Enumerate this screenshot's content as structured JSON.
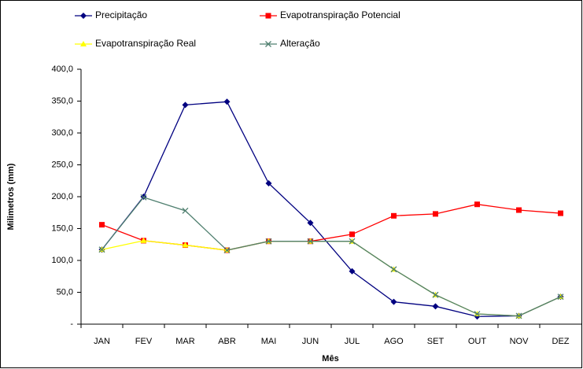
{
  "chart_data": {
    "type": "line",
    "xlabel": "Mês",
    "ylabel": "Milimetros (mm)",
    "categories": [
      "JAN",
      "FEV",
      "MAR",
      "ABR",
      "MAI",
      "JUN",
      "JUL",
      "AGO",
      "SET",
      "OUT",
      "NOV",
      "DEZ"
    ],
    "series": [
      {
        "name": "Precipitação",
        "color": "#000080",
        "marker": "diamond",
        "values": [
          117,
          200,
          344,
          349,
          221,
          159,
          83,
          35,
          28,
          12,
          13,
          43
        ]
      },
      {
        "name": "Evapotranspiração Potencial",
        "color": "#ff0000",
        "marker": "square",
        "values": [
          156,
          131,
          124,
          116,
          130,
          130,
          141,
          170,
          173,
          188,
          179,
          174
        ]
      },
      {
        "name": "Evapotranspiração Real",
        "color": "#ffff00",
        "marker": "triangle",
        "values": [
          117,
          131,
          124,
          116,
          130,
          130,
          130,
          86,
          46,
          16,
          13,
          43
        ]
      },
      {
        "name": "Alteração",
        "color": "#4f7f6f",
        "marker": "x",
        "values": [
          117,
          199,
          178,
          116,
          130,
          130,
          130,
          86,
          46,
          16,
          13,
          43
        ]
      }
    ],
    "ylim": [
      0,
      400
    ],
    "yticks": [
      {
        "value": 0,
        "label": "-"
      },
      {
        "value": 50,
        "label": "50,0"
      },
      {
        "value": 100,
        "label": "100,0"
      },
      {
        "value": 150,
        "label": "150,0"
      },
      {
        "value": 200,
        "label": "200,0"
      },
      {
        "value": 250,
        "label": "250,0"
      },
      {
        "value": 300,
        "label": "300,0"
      },
      {
        "value": 350,
        "label": "350,0"
      },
      {
        "value": 400,
        "label": "400,0"
      }
    ]
  }
}
